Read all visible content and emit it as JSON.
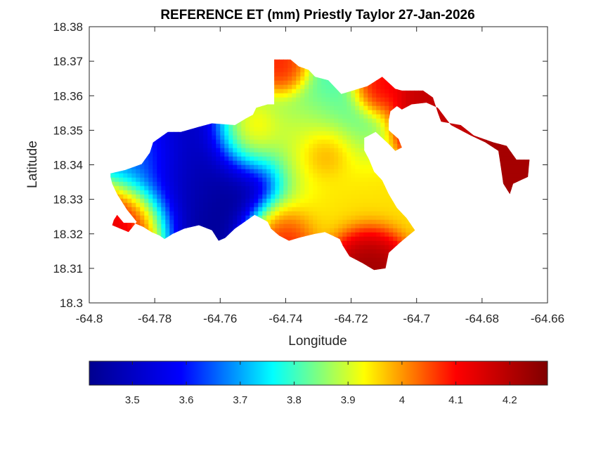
{
  "chart_data": {
    "type": "heatmap",
    "title": "REFERENCE ET (mm) Priestly Taylor 27-Jan-2026",
    "xlabel": "Longitude",
    "ylabel": "Latitude",
    "xlim": [
      -64.8,
      -64.66
    ],
    "ylim": [
      18.3,
      18.38
    ],
    "x_ticks": [
      -64.8,
      -64.78,
      -64.76,
      -64.74,
      -64.72,
      -64.7,
      -64.68,
      -64.66
    ],
    "x_tick_labels": [
      "-64.8",
      "-64.78",
      "-64.76",
      "-64.74",
      "-64.72",
      "-64.7",
      "-64.68",
      "-64.66"
    ],
    "y_ticks": [
      18.3,
      18.31,
      18.32,
      18.33,
      18.34,
      18.35,
      18.36,
      18.37,
      18.38
    ],
    "y_tick_labels": [
      "18.3",
      "18.31",
      "18.32",
      "18.33",
      "18.34",
      "18.35",
      "18.36",
      "18.37",
      "18.38"
    ],
    "colorbar": {
      "range": [
        3.42,
        4.27
      ],
      "ticks": [
        3.5,
        3.6,
        3.7,
        3.8,
        3.9,
        4.0,
        4.1,
        4.2
      ],
      "tick_labels": [
        "3.5",
        "3.6",
        "3.7",
        "3.8",
        "3.9",
        "4",
        "4.1",
        "4.2"
      ],
      "colormap": "jet",
      "orientation": "horizontal"
    },
    "colormap_stops": [
      "#00008f",
      "#0000ff",
      "#00ffff",
      "#ffff00",
      "#ff0000",
      "#800000"
    ],
    "grid": false,
    "field_centers": [
      {
        "lon": -64.762,
        "lat": 18.3352,
        "value": 3.42,
        "spread": 0.012
      },
      {
        "lon": -64.775,
        "lat": 18.3405,
        "value": 3.55,
        "spread": 0.01
      },
      {
        "lon": -64.785,
        "lat": 18.342,
        "value": 3.72,
        "spread": 0.006
      },
      {
        "lon": -64.726,
        "lat": 18.356,
        "value": 3.8,
        "spread": 0.009
      },
      {
        "lon": -64.733,
        "lat": 18.347,
        "value": 3.95,
        "spread": 0.008
      },
      {
        "lon": -64.728,
        "lat": 18.3435,
        "value": 4.06,
        "spread": 0.004
      },
      {
        "lon": -64.725,
        "lat": 18.33,
        "value": 3.95,
        "spread": 0.01
      },
      {
        "lon": -64.752,
        "lat": 18.348,
        "value": 4.08,
        "spread": 0.006
      },
      {
        "lon": -64.788,
        "lat": 18.325,
        "value": 4.18,
        "spread": 0.007
      },
      {
        "lon": -64.717,
        "lat": 18.313,
        "value": 4.25,
        "spread": 0.005
      },
      {
        "lon": -64.742,
        "lat": 18.319,
        "value": 4.13,
        "spread": 0.006
      },
      {
        "lon": -64.74,
        "lat": 18.367,
        "value": 4.1,
        "spread": 0.004
      },
      {
        "lon": -64.713,
        "lat": 18.362,
        "value": 4.15,
        "spread": 0.004
      },
      {
        "lon": -64.695,
        "lat": 18.357,
        "value": 4.18,
        "spread": 0.007
      },
      {
        "lon": -64.668,
        "lat": 18.338,
        "value": 4.22,
        "spread": 0.006
      }
    ],
    "region_outline": [
      [
        -64.7935,
        18.3365
      ],
      [
        -64.7935,
        18.3375
      ],
      [
        -64.789,
        18.3385
      ],
      [
        -64.784,
        18.3402
      ],
      [
        -64.7815,
        18.3435
      ],
      [
        -64.7805,
        18.3465
      ],
      [
        -64.776,
        18.3495
      ],
      [
        -64.772,
        18.3495
      ],
      [
        -64.7665,
        18.351
      ],
      [
        -64.7625,
        18.352
      ],
      [
        -64.7555,
        18.3515
      ],
      [
        -64.752,
        18.3535
      ],
      [
        -64.75,
        18.3545
      ],
      [
        -64.749,
        18.3565
      ],
      [
        -64.7455,
        18.3575
      ],
      [
        -64.7435,
        18.3575
      ],
      [
        -64.7435,
        18.3615
      ],
      [
        -64.7435,
        18.3705
      ],
      [
        -64.7385,
        18.3705
      ],
      [
        -64.736,
        18.3685
      ],
      [
        -64.733,
        18.3675
      ],
      [
        -64.731,
        18.3655
      ],
      [
        -64.727,
        18.3645
      ],
      [
        -64.723,
        18.3605
      ],
      [
        -64.7195,
        18.3615
      ],
      [
        -64.715,
        18.3628
      ],
      [
        -64.7105,
        18.3655
      ],
      [
        -64.7065,
        18.362
      ],
      [
        -64.7045,
        18.3615
      ],
      [
        -64.703,
        18.3615
      ],
      [
        -64.698,
        18.3615
      ],
      [
        -64.695,
        18.3595
      ],
      [
        -64.6935,
        18.355
      ],
      [
        -64.6925,
        18.3525
      ],
      [
        -64.6865,
        18.3515
      ],
      [
        -64.6825,
        18.3485
      ],
      [
        -64.6765,
        18.3465
      ],
      [
        -64.6725,
        18.3455
      ],
      [
        -64.6695,
        18.3415
      ],
      [
        -64.6655,
        18.3415
      ],
      [
        -64.666,
        18.3365
      ],
      [
        -64.6705,
        18.3345
      ],
      [
        -64.6715,
        18.3315
      ],
      [
        -64.6735,
        18.3345
      ],
      [
        -64.675,
        18.344
      ],
      [
        -64.679,
        18.3465
      ],
      [
        -64.6835,
        18.3485
      ],
      [
        -64.6895,
        18.3515
      ],
      [
        -64.6935,
        18.3565
      ],
      [
        -64.697,
        18.358
      ],
      [
        -64.7015,
        18.3575
      ],
      [
        -64.7045,
        18.356
      ],
      [
        -64.706,
        18.357
      ],
      [
        -64.708,
        18.3555
      ],
      [
        -64.7085,
        18.353
      ],
      [
        -64.7085,
        18.35
      ],
      [
        -64.7055,
        18.3475
      ],
      [
        -64.7045,
        18.345
      ],
      [
        -64.7065,
        18.344
      ],
      [
        -64.7085,
        18.346
      ],
      [
        -64.7125,
        18.3495
      ],
      [
        -64.716,
        18.3478
      ],
      [
        -64.716,
        18.3442
      ],
      [
        -64.7145,
        18.3415
      ],
      [
        -64.713,
        18.338
      ],
      [
        -64.7105,
        18.3355
      ],
      [
        -64.7085,
        18.3315
      ],
      [
        -64.706,
        18.3275
      ],
      [
        -64.703,
        18.3245
      ],
      [
        -64.7005,
        18.321
      ],
      [
        -64.7025,
        18.3195
      ],
      [
        -64.705,
        18.3175
      ],
      [
        -64.7085,
        18.3145
      ],
      [
        -64.7095,
        18.31
      ],
      [
        -64.713,
        18.3095
      ],
      [
        -64.7165,
        18.3115
      ],
      [
        -64.7205,
        18.3135
      ],
      [
        -64.7225,
        18.3165
      ],
      [
        -64.7235,
        18.3185
      ],
      [
        -64.728,
        18.3205
      ],
      [
        -64.731,
        18.32
      ],
      [
        -64.7355,
        18.319
      ],
      [
        -64.739,
        18.318
      ],
      [
        -64.742,
        18.3195
      ],
      [
        -64.7445,
        18.3215
      ],
      [
        -64.7455,
        18.3235
      ],
      [
        -64.7475,
        18.3245
      ],
      [
        -64.7495,
        18.3255
      ],
      [
        -64.7525,
        18.3235
      ],
      [
        -64.7555,
        18.3215
      ],
      [
        -64.7585,
        18.3188
      ],
      [
        -64.7605,
        18.318
      ],
      [
        -64.7625,
        18.321
      ],
      [
        -64.7665,
        18.3225
      ],
      [
        -64.771,
        18.3215
      ],
      [
        -64.7745,
        18.32
      ],
      [
        -64.777,
        18.3185
      ],
      [
        -64.7785,
        18.3195
      ],
      [
        -64.781,
        18.3205
      ],
      [
        -64.7835,
        18.322
      ],
      [
        -64.7865,
        18.3232
      ],
      [
        -64.7895,
        18.3232
      ],
      [
        -64.7915,
        18.3255
      ],
      [
        -64.7925,
        18.324
      ],
      [
        -64.793,
        18.3225
      ],
      [
        -64.7905,
        18.3215
      ],
      [
        -64.788,
        18.3205
      ],
      [
        -64.7855,
        18.3235
      ],
      [
        -64.7885,
        18.327
      ],
      [
        -64.7915,
        18.3315
      ],
      [
        -64.793,
        18.3345
      ],
      [
        -64.7935,
        18.3365
      ]
    ]
  }
}
